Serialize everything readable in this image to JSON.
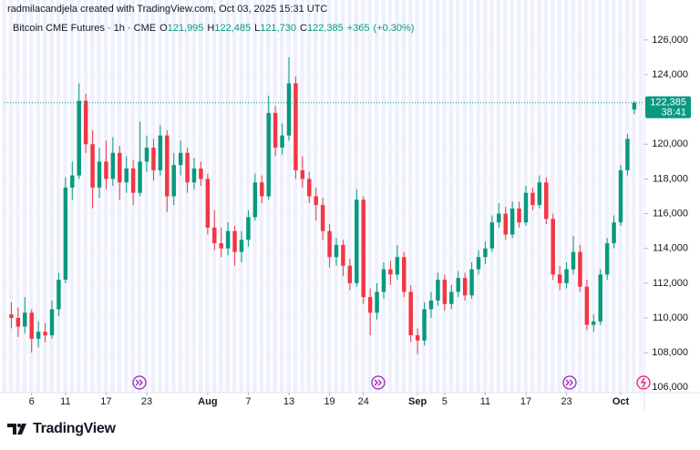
{
  "header": {
    "credit": "radmilacandjela created with TradingView.com, Oct 03, 2025 15:31 UTC"
  },
  "footer": {
    "brand": "TradingView"
  },
  "chart_data": {
    "type": "candlestick",
    "title": "Bitcoin CME Futures · 1h · CME",
    "readout": [
      {
        "name": "O",
        "value": 121995,
        "label": "121,995"
      },
      {
        "name": "H",
        "value": 122485,
        "label": "122,485"
      },
      {
        "name": "L",
        "value": 121730,
        "label": "121,730"
      },
      {
        "name": "C",
        "value": 122385,
        "label": "122,385"
      }
    ],
    "change": {
      "value": 365,
      "label": "+365"
    },
    "change_pct": {
      "value": 0.3,
      "label": "(+0.30%)"
    },
    "last_price": {
      "value": 122385,
      "label": "122,385"
    },
    "countdown": "38:41",
    "up_color": "#089981",
    "down_color": "#f23645",
    "xlim": [
      1,
      95.5
    ],
    "xticks": [
      {
        "value": 5,
        "label": "6"
      },
      {
        "value": 10,
        "label": "11"
      },
      {
        "value": 16,
        "label": "17"
      },
      {
        "value": 22,
        "label": "23"
      },
      {
        "value": 31,
        "label": "Aug"
      },
      {
        "value": 37,
        "label": "7"
      },
      {
        "value": 43,
        "label": "13"
      },
      {
        "value": 49,
        "label": "19"
      },
      {
        "value": 54,
        "label": "24"
      },
      {
        "value": 62,
        "label": "Sep"
      },
      {
        "value": 66,
        "label": "5"
      },
      {
        "value": 72,
        "label": "11"
      },
      {
        "value": 78,
        "label": "17"
      },
      {
        "value": 84,
        "label": "23"
      },
      {
        "value": 92,
        "label": "Oct"
      }
    ],
    "ylim": [
      105700,
      128300
    ],
    "yticks": [
      {
        "value": 106000,
        "label": "106,000"
      },
      {
        "value": 108000,
        "label": "108,000"
      },
      {
        "value": 110000,
        "label": "110,000"
      },
      {
        "value": 112000,
        "label": "112,000"
      },
      {
        "value": 114000,
        "label": "114,000"
      },
      {
        "value": 116000,
        "label": "116,000"
      },
      {
        "value": 118000,
        "label": "118,000"
      },
      {
        "value": 120000,
        "label": "120,000"
      },
      {
        "value": 122000,
        "label": "122,000"
      },
      {
        "value": 124000,
        "label": "124,000"
      },
      {
        "value": 126000,
        "label": "126,000"
      }
    ],
    "x": [
      2,
      3,
      4,
      5,
      6,
      7,
      8,
      9,
      10,
      11,
      12,
      13,
      14,
      15,
      16,
      17,
      18,
      19,
      20,
      21,
      22,
      23,
      24,
      25,
      26,
      27,
      28,
      29,
      30,
      31,
      32,
      33,
      34,
      35,
      36,
      37,
      38,
      39,
      40,
      41,
      42,
      43,
      44,
      45,
      46,
      47,
      48,
      49,
      50,
      51,
      52,
      53,
      54,
      55,
      56,
      57,
      58,
      59,
      60,
      61,
      62,
      63,
      64,
      65,
      66,
      67,
      68,
      69,
      70,
      71,
      72,
      73,
      74,
      75,
      76,
      77,
      78,
      79,
      80,
      81,
      82,
      83,
      84,
      85,
      86,
      87,
      88,
      89,
      90,
      91,
      92,
      93,
      94
    ],
    "candles": [
      [
        110200,
        110900,
        109400,
        110000
      ],
      [
        110000,
        110600,
        108900,
        109500
      ],
      [
        109500,
        111200,
        109100,
        110300
      ],
      [
        110300,
        110500,
        108000,
        108800
      ],
      [
        108800,
        109800,
        108300,
        109200
      ],
      [
        109200,
        109700,
        108600,
        109000
      ],
      [
        109000,
        111000,
        108800,
        110500
      ],
      [
        110500,
        112600,
        110100,
        112200
      ],
      [
        112200,
        118100,
        112000,
        117500
      ],
      [
        117500,
        119000,
        116800,
        118200
      ],
      [
        118200,
        123500,
        118000,
        122500
      ],
      [
        122500,
        122900,
        119500,
        120000
      ],
      [
        120000,
        120800,
        116300,
        117500
      ],
      [
        117500,
        119800,
        116900,
        119000
      ],
      [
        119000,
        120200,
        117400,
        118000
      ],
      [
        118000,
        120400,
        117600,
        119500
      ],
      [
        119500,
        119900,
        116800,
        117800
      ],
      [
        117800,
        119300,
        117200,
        118600
      ],
      [
        118600,
        119100,
        116500,
        117200
      ],
      [
        117200,
        121300,
        117000,
        119000
      ],
      [
        119000,
        120500,
        118400,
        119800
      ],
      [
        119800,
        120300,
        117900,
        118500
      ],
      [
        118500,
        121100,
        118200,
        120500
      ],
      [
        120500,
        120800,
        116100,
        117000
      ],
      [
        117000,
        119500,
        116500,
        118800
      ],
      [
        118800,
        120200,
        118200,
        119500
      ],
      [
        119500,
        119800,
        117200,
        117800
      ],
      [
        117800,
        119200,
        117400,
        118600
      ],
      [
        118600,
        119000,
        117600,
        118000
      ],
      [
        118000,
        118300,
        114800,
        115200
      ],
      [
        115200,
        116200,
        113900,
        114300
      ],
      [
        114300,
        115200,
        113500,
        114000
      ],
      [
        114000,
        115500,
        113600,
        115000
      ],
      [
        115000,
        115300,
        113000,
        113800
      ],
      [
        113800,
        115000,
        113200,
        114500
      ],
      [
        114500,
        116200,
        114100,
        115800
      ],
      [
        115800,
        118300,
        115600,
        117800
      ],
      [
        117800,
        118200,
        116600,
        117000
      ],
      [
        117000,
        122800,
        116800,
        121800
      ],
      [
        121800,
        122200,
        119300,
        119800
      ],
      [
        119800,
        121200,
        119400,
        120500
      ],
      [
        120500,
        125000,
        120200,
        123500
      ],
      [
        123500,
        123900,
        118000,
        118500
      ],
      [
        118500,
        119300,
        117500,
        118000
      ],
      [
        118000,
        118400,
        116600,
        117000
      ],
      [
        117000,
        117500,
        115600,
        116500
      ],
      [
        116500,
        116900,
        114500,
        115000
      ],
      [
        115000,
        115400,
        112900,
        113500
      ],
      [
        113500,
        114600,
        113000,
        114200
      ],
      [
        114200,
        114500,
        112400,
        113000
      ],
      [
        113000,
        113400,
        111600,
        112000
      ],
      [
        112000,
        117400,
        111800,
        116800
      ],
      [
        116800,
        117000,
        110800,
        111200
      ],
      [
        111200,
        111700,
        109000,
        110300
      ],
      [
        110300,
        112000,
        109900,
        111500
      ],
      [
        111500,
        113200,
        111100,
        112800
      ],
      [
        112800,
        113300,
        111900,
        112500
      ],
      [
        112500,
        114200,
        112200,
        113500
      ],
      [
        113500,
        113800,
        111200,
        111500
      ],
      [
        111500,
        111900,
        108600,
        109000
      ],
      [
        109000,
        109400,
        107900,
        108700
      ],
      [
        108700,
        110900,
        108400,
        110500
      ],
      [
        110500,
        111500,
        110000,
        111000
      ],
      [
        111000,
        112600,
        110700,
        112200
      ],
      [
        112200,
        112500,
        110400,
        110800
      ],
      [
        110800,
        111900,
        110500,
        111500
      ],
      [
        111500,
        112700,
        111200,
        112300
      ],
      [
        112300,
        112600,
        111000,
        111300
      ],
      [
        111300,
        113200,
        111100,
        112800
      ],
      [
        112800,
        113900,
        112500,
        113500
      ],
      [
        113500,
        114400,
        113100,
        114000
      ],
      [
        114000,
        115900,
        113800,
        115500
      ],
      [
        115500,
        116600,
        115200,
        116000
      ],
      [
        116000,
        116400,
        114500,
        114800
      ],
      [
        114800,
        116700,
        114600,
        116300
      ],
      [
        116300,
        116700,
        115200,
        115500
      ],
      [
        115500,
        117600,
        115300,
        117200
      ],
      [
        117200,
        117500,
        116200,
        116500
      ],
      [
        116500,
        118200,
        116300,
        117800
      ],
      [
        117800,
        118100,
        115400,
        115700
      ],
      [
        115700,
        116000,
        112200,
        112500
      ],
      [
        112500,
        113000,
        111600,
        112000
      ],
      [
        112000,
        113200,
        111700,
        112800
      ],
      [
        112800,
        114700,
        112500,
        113800
      ],
      [
        113800,
        114200,
        111500,
        111800
      ],
      [
        111800,
        112200,
        109300,
        109600
      ],
      [
        109600,
        110200,
        109200,
        109800
      ],
      [
        109800,
        112800,
        109600,
        112500
      ],
      [
        112500,
        114600,
        112200,
        114300
      ],
      [
        114300,
        115900,
        114000,
        115500
      ],
      [
        115500,
        118800,
        115300,
        118500
      ],
      [
        118500,
        120600,
        118200,
        120300
      ],
      [
        121995,
        122485,
        121730,
        122385
      ]
    ]
  }
}
